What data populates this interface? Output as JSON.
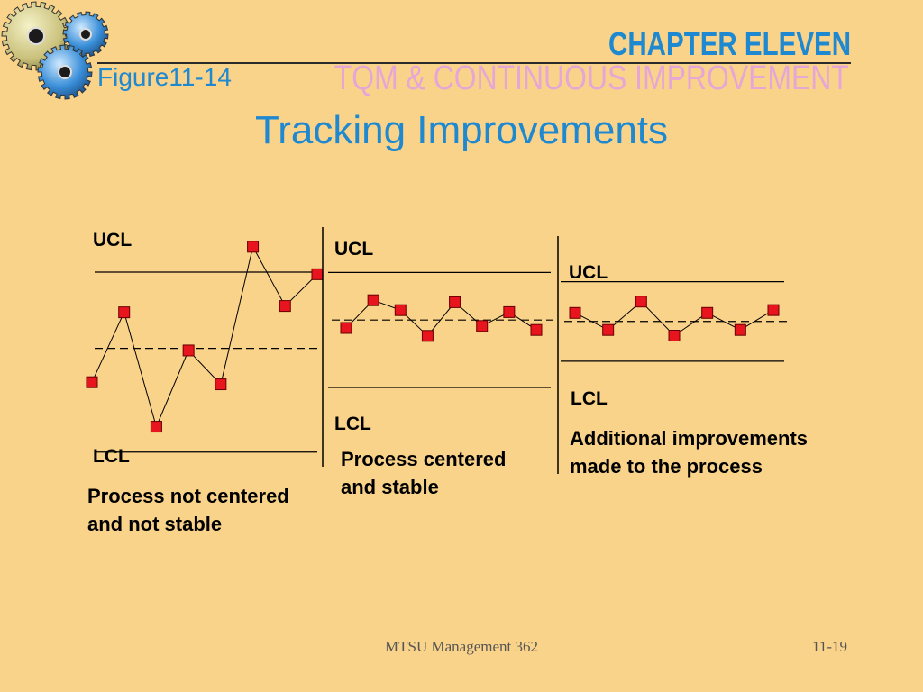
{
  "header": {
    "chapter": "CHAPTER ELEVEN",
    "subtitle": "TQM & CONTINUOUS IMPROVEMENT",
    "figure_label": "Figure11-14"
  },
  "title": "Tracking Improvements",
  "colors": {
    "background": "#FAD38A",
    "title_blue": "#1E88D0",
    "subtitle_pink": "#E6A6D6",
    "marker_red": "#E8141E"
  },
  "icons": [
    "gears-icon"
  ],
  "chart_data": [
    {
      "type": "line",
      "title": "",
      "ucl_label": "UCL",
      "lcl_label": "LCL",
      "caption": [
        "Process not centered",
        "and not stable"
      ],
      "ylim": [
        0,
        10
      ],
      "ucl": 8,
      "center": 4.4,
      "lcl": -0.5,
      "x": [
        1,
        2,
        3,
        4,
        5,
        6,
        7,
        8
      ],
      "values": [
        2.8,
        6.1,
        0.7,
        4.3,
        2.7,
        9.2,
        6.4,
        7.9
      ]
    },
    {
      "type": "line",
      "title": "",
      "ucl_label": "UCL",
      "lcl_label": "LCL",
      "caption": [
        "Process centered",
        "and stable"
      ],
      "ylim": [
        0,
        10
      ],
      "ucl": 7.8,
      "center": 5.4,
      "lcl": 2.0,
      "x": [
        1,
        2,
        3,
        4,
        5,
        6,
        7,
        8
      ],
      "values": [
        5.0,
        6.4,
        5.9,
        4.6,
        6.3,
        5.1,
        5.8,
        4.9
      ]
    },
    {
      "type": "line",
      "title": "",
      "ucl_label": "UCL",
      "lcl_label": "LCL",
      "caption": [
        "Additional improvements",
        "made to the process"
      ],
      "ylim": [
        0,
        10
      ],
      "ucl": 6.9,
      "center": 5.5,
      "lcl": 4.1,
      "x": [
        1,
        2,
        3,
        4,
        5,
        6,
        7
      ],
      "values": [
        5.8,
        5.2,
        6.2,
        5.0,
        5.8,
        5.2,
        5.9
      ]
    }
  ],
  "footer": {
    "course": "MTSU Management 362",
    "page": "11-19"
  }
}
